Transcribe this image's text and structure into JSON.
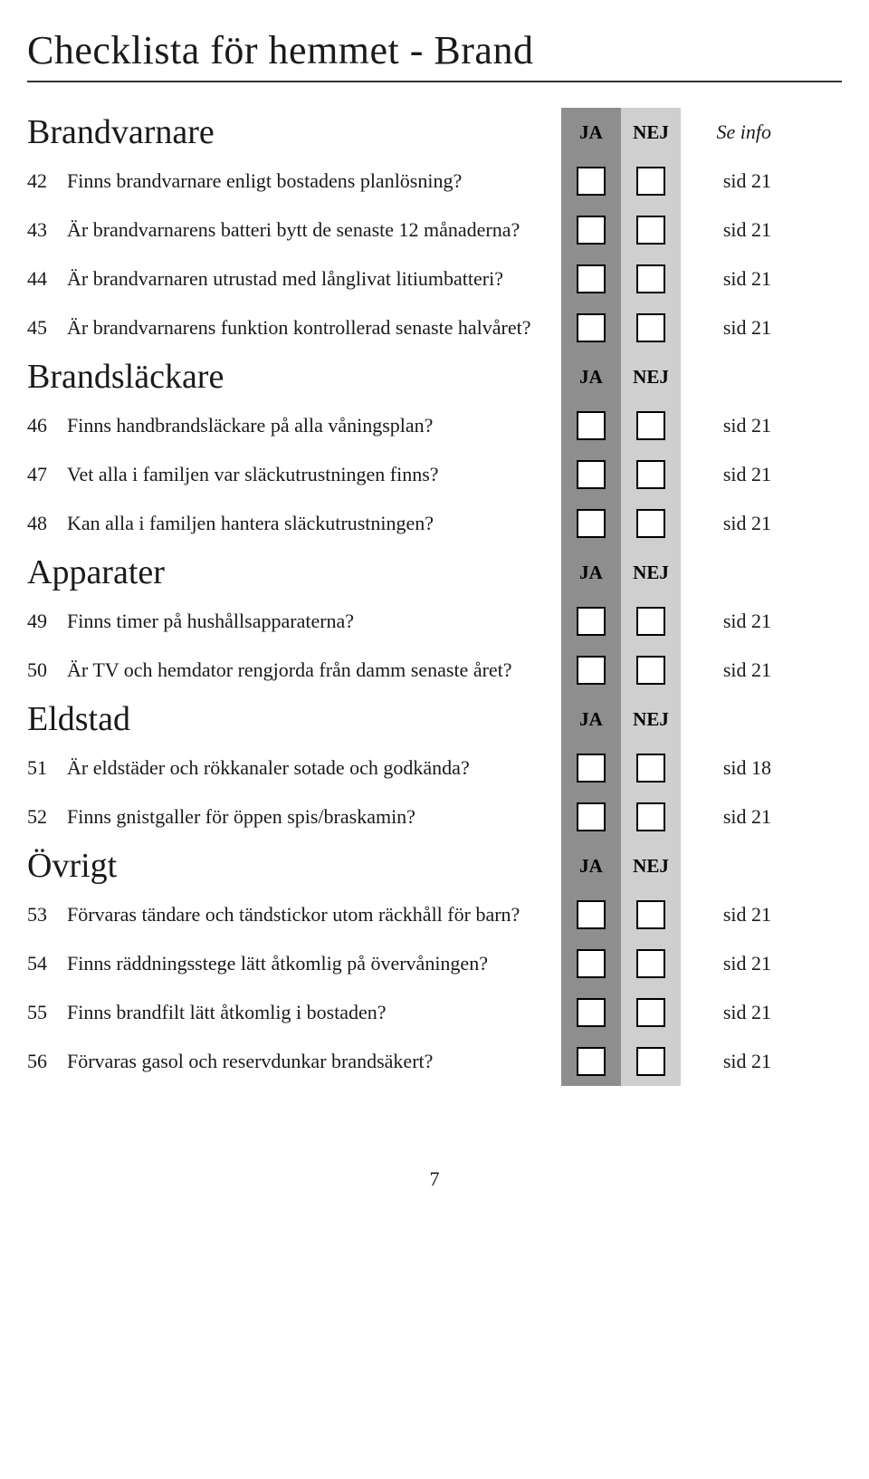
{
  "title": "Checklista för hemmet - Brand",
  "col_ja": "JA",
  "col_nej": "NEJ",
  "col_info": "Se info",
  "page_number": "7",
  "sections": [
    {
      "heading": "Brandvarnare",
      "show_info_head": true,
      "items": [
        {
          "num": "42",
          "text": "Finns brandvarnare enligt bostadens planlösning?",
          "ref": "sid 21"
        },
        {
          "num": "43",
          "text": "Är brandvarnarens batteri bytt de senaste 12 månaderna?",
          "ref": "sid 21"
        },
        {
          "num": "44",
          "text": "Är brandvarnaren utrustad med långlivat litiumbatteri?",
          "ref": "sid 21"
        },
        {
          "num": "45",
          "text": "Är brandvarnarens funktion kontrollerad senaste halvåret?",
          "ref": "sid 21"
        }
      ]
    },
    {
      "heading": "Brandsläckare",
      "show_info_head": false,
      "items": [
        {
          "num": "46",
          "text": "Finns handbrandsläckare på alla våningsplan?",
          "ref": "sid 21"
        },
        {
          "num": "47",
          "text": "Vet alla i familjen var släckutrustningen finns?",
          "ref": "sid 21"
        },
        {
          "num": "48",
          "text": "Kan alla i familjen hantera släckutrustningen?",
          "ref": "sid 21"
        }
      ]
    },
    {
      "heading": "Apparater",
      "show_info_head": false,
      "items": [
        {
          "num": "49",
          "text": "Finns timer på hushållsapparaterna?",
          "ref": "sid 21"
        },
        {
          "num": "50",
          "text": "Är TV och hemdator rengjorda från damm senaste året?",
          "ref": "sid 21"
        }
      ]
    },
    {
      "heading": "Eldstad",
      "show_info_head": false,
      "items": [
        {
          "num": "51",
          "text": "Är eldstäder och rökkanaler sotade och godkända?",
          "ref": "sid 18"
        },
        {
          "num": "52",
          "text": "Finns gnistgaller för öppen spis/braskamin?",
          "ref": "sid 21"
        }
      ]
    },
    {
      "heading": "Övrigt",
      "show_info_head": false,
      "items": [
        {
          "num": "53",
          "text": "Förvaras tändare och tändstickor utom räckhåll för barn?",
          "ref": "sid 21"
        },
        {
          "num": "54",
          "text": "Finns räddningsstege lätt åtkomlig på övervåningen?",
          "ref": "sid 21"
        },
        {
          "num": "55",
          "text": "Finns brandfilt lätt åtkomlig i bostaden?",
          "ref": "sid 21"
        },
        {
          "num": "56",
          "text": "Förvaras gasol och reservdunkar brandsäkert?",
          "ref": "sid 21"
        }
      ]
    }
  ]
}
